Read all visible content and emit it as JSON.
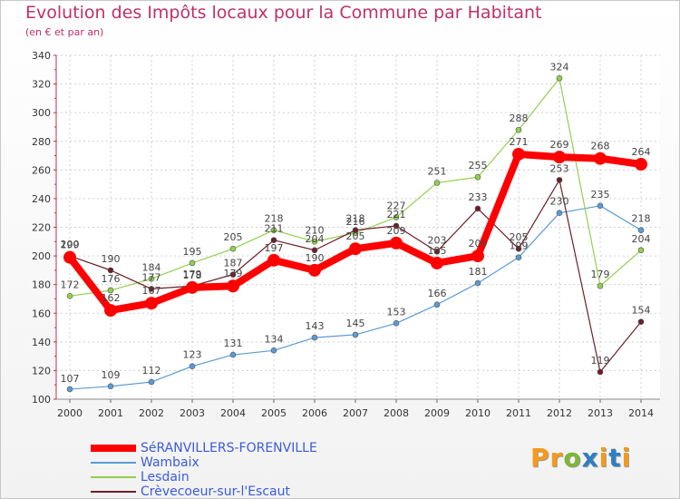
{
  "header": {
    "title": "Evolution des Impôts locaux pour la Commune par Habitant",
    "subtitle": "(en € et par an)"
  },
  "logo": {
    "text": "Proxiti"
  },
  "chart_data": {
    "type": "line",
    "title": "Evolution des Impôts locaux pour la Commune par Habitant",
    "subtitle": "(en € et par an)",
    "x": [
      "2000",
      "2001",
      "2002",
      "2003",
      "2004",
      "2005",
      "2006",
      "2007",
      "2008",
      "2009",
      "2010",
      "2011",
      "2012",
      "2013",
      "2014"
    ],
    "ylim": [
      100,
      340
    ],
    "yticks": [
      100,
      120,
      140,
      160,
      180,
      200,
      220,
      240,
      260,
      280,
      300,
      320,
      340
    ],
    "grid": true,
    "legend": "bottom-left",
    "series": [
      {
        "name": "SéRANVILLERS-FORENVILLE",
        "color": "#ff0000",
        "values": [
          199,
          162,
          167,
          178,
          179,
          197,
          190,
          205,
          209,
          195,
          200,
          271,
          269,
          268,
          264
        ]
      },
      {
        "name": "Wambaix",
        "color": "#5b9bd5",
        "values": [
          107,
          109,
          112,
          123,
          131,
          134,
          143,
          145,
          153,
          166,
          181,
          199,
          230,
          235,
          218
        ]
      },
      {
        "name": "Lesdain",
        "color": "#92d050",
        "values": [
          172,
          176,
          184,
          195,
          205,
          218,
          210,
          216,
          227,
          251,
          255,
          288,
          324,
          179,
          204
        ]
      },
      {
        "name": "Crèvecoeur-sur-l'Escaut",
        "color": "#6b1f2a",
        "values": [
          200,
          190,
          177,
          179,
          187,
          211,
          204,
          218,
          221,
          203,
          233,
          205,
          253,
          119,
          154
        ]
      }
    ]
  }
}
